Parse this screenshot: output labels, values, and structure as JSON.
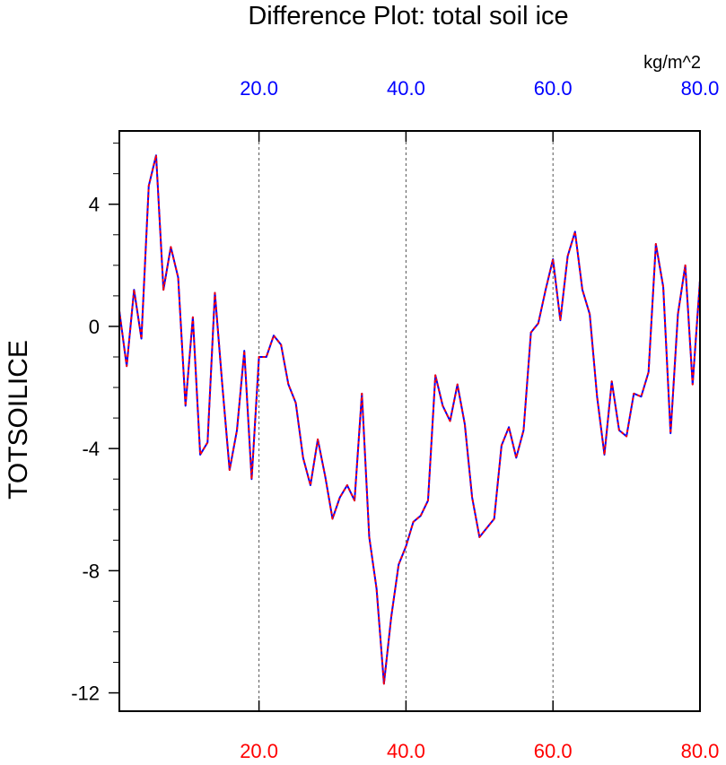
{
  "chart_data": {
    "type": "line",
    "title": "Difference Plot: total soil ice",
    "units": "kg/m^2",
    "ylabel": "TOTSOILICE",
    "xlim": [
      1,
      80
    ],
    "ylim": [
      -12.6,
      6.4
    ],
    "x_ticks": [
      "20.0",
      "40.0",
      "60.0",
      "80.0"
    ],
    "y_ticks": [
      "4",
      "0",
      "-4",
      "-8",
      "-12"
    ],
    "grid": "vertical dashed",
    "series": [
      {
        "line_color": "#0000ff",
        "dash_color": "#ff0000",
        "x": [
          1,
          2,
          3,
          4,
          5,
          6,
          7,
          8,
          9,
          10,
          11,
          12,
          13,
          14,
          15,
          16,
          17,
          18,
          19,
          20,
          21,
          22,
          23,
          24,
          25,
          26,
          27,
          28,
          29,
          30,
          31,
          32,
          33,
          34,
          35,
          36,
          37,
          38,
          39,
          40,
          41,
          42,
          43,
          44,
          45,
          46,
          47,
          48,
          49,
          50,
          51,
          52,
          53,
          54,
          55,
          56,
          57,
          58,
          59,
          60,
          61,
          62,
          63,
          64,
          65,
          66,
          67,
          68,
          69,
          70,
          71,
          72,
          73,
          74,
          75,
          76,
          77,
          78,
          79,
          80
        ],
        "values": [
          0.5,
          -1.3,
          1.2,
          -0.4,
          4.6,
          5.6,
          1.2,
          2.6,
          1.6,
          -2.6,
          0.3,
          -4.2,
          -3.8,
          1.1,
          -1.9,
          -4.7,
          -3.4,
          -0.8,
          -5.0,
          -1.0,
          -1.0,
          -0.3,
          -0.6,
          -1.9,
          -2.5,
          -4.3,
          -5.2,
          -3.7,
          -4.9,
          -6.3,
          -5.6,
          -5.2,
          -5.7,
          -2.2,
          -6.9,
          -8.6,
          -11.7,
          -9.5,
          -7.8,
          -7.2,
          -6.4,
          -6.2,
          -5.7,
          -1.6,
          -2.6,
          -3.1,
          -1.9,
          -3.2,
          -5.6,
          -6.9,
          -6.6,
          -6.3,
          -3.9,
          -3.3,
          -4.3,
          -3.4,
          -0.2,
          0.1,
          1.2,
          2.2,
          0.2,
          2.3,
          3.1,
          1.2,
          0.4,
          -2.3,
          -4.2,
          -1.8,
          -3.4,
          -3.6,
          -2.2,
          -2.3,
          -1.5,
          2.7,
          1.3,
          -3.5,
          0.4,
          2.0,
          -1.9,
          1.5
        ]
      }
    ]
  },
  "colors": {
    "top_axis_labels": "#0000ff",
    "bottom_axis_labels": "#ff0000",
    "series_line": "#0000ff",
    "series_dash": "#ff0000"
  }
}
